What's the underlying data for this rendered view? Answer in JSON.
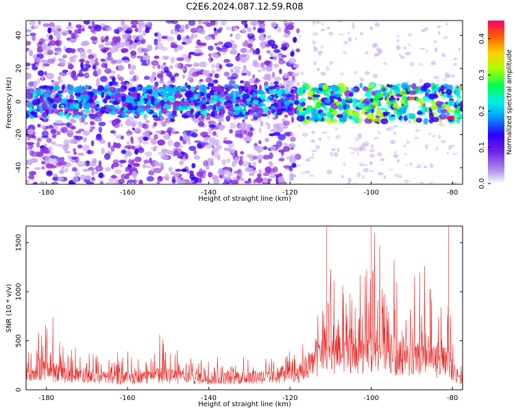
{
  "title": "C2E6.2024.087.12.59.R08",
  "colors": {
    "snr_line": "#e8221f",
    "axis": "#000000",
    "scale": [
      "#ffffff",
      "#c8a8f0",
      "#8a2be2",
      "#3300ff",
      "#00b4ff",
      "#00ffd0",
      "#00ff40",
      "#aaff00",
      "#ffd000",
      "#ff6000",
      "#ff0060"
    ]
  },
  "chart_data": [
    {
      "type": "heatmap",
      "xlabel": "Height of straight line (km)",
      "ylabel": "Frequency (Hz)",
      "xlim": [
        -185,
        -77.5
      ],
      "ylim": [
        -50,
        49
      ],
      "x_ticks": [
        -180,
        -160,
        -140,
        -120,
        -100,
        -80
      ],
      "y_ticks": [
        -40,
        -20,
        0,
        20,
        40
      ],
      "colorbar": {
        "label": "Normalized spectral amplitude",
        "range": [
          0,
          0.45
        ],
        "ticks": [
          0.0,
          0.1,
          0.2,
          0.3,
          0.4
        ]
      },
      "bands": [
        {
          "x_range": [
            -185,
            -118
          ],
          "freq_range": [
            -50,
            49
          ],
          "level": "scattered low amplitude across full frequency range"
        },
        {
          "x_range": [
            -118,
            -77.5
          ],
          "freq_range": [
            -12,
            10
          ],
          "level": "concentrated higher amplitude near 0 Hz"
        },
        {
          "x_range": [
            -83,
            -79
          ],
          "freq": -10,
          "level": "peak ~0.45"
        }
      ]
    },
    {
      "type": "line",
      "xlabel": "Height of straight line (km)",
      "ylabel": "SNR (10 * v/v)",
      "xlim": [
        -185,
        -77.5
      ],
      "ylim": [
        0,
        1670
      ],
      "x_ticks": [
        -180,
        -160,
        -140,
        -120,
        -100,
        -80
      ],
      "y_ticks": [
        0,
        500,
        1000,
        1500
      ],
      "envelope": [
        {
          "x": -185,
          "base": 200,
          "peak": 450
        },
        {
          "x": -181,
          "base": 250,
          "peak": 700
        },
        {
          "x": -177,
          "base": 200,
          "peak": 780
        },
        {
          "x": -175,
          "base": 180,
          "peak": 450
        },
        {
          "x": -165,
          "base": 150,
          "peak": 380
        },
        {
          "x": -155,
          "base": 150,
          "peak": 420
        },
        {
          "x": -151,
          "base": 200,
          "peak": 620
        },
        {
          "x": -148,
          "base": 160,
          "peak": 420
        },
        {
          "x": -135,
          "base": 150,
          "peak": 330
        },
        {
          "x": -125,
          "base": 160,
          "peak": 350
        },
        {
          "x": -118,
          "base": 200,
          "peak": 450
        },
        {
          "x": -114,
          "base": 350,
          "peak": 700
        },
        {
          "x": -111,
          "base": 450,
          "peak": 1670
        },
        {
          "x": -108,
          "base": 450,
          "peak": 1100
        },
        {
          "x": -104,
          "base": 450,
          "peak": 1050
        },
        {
          "x": -100,
          "base": 450,
          "peak": 1650
        },
        {
          "x": -96,
          "base": 400,
          "peak": 1550
        },
        {
          "x": -92,
          "base": 400,
          "peak": 1050
        },
        {
          "x": -88,
          "base": 380,
          "peak": 1350
        },
        {
          "x": -84,
          "base": 350,
          "peak": 1100
        },
        {
          "x": -81,
          "base": 350,
          "peak": 1670
        },
        {
          "x": -79,
          "base": 120,
          "peak": 300
        },
        {
          "x": -77.5,
          "base": 120,
          "peak": 250
        }
      ]
    }
  ]
}
